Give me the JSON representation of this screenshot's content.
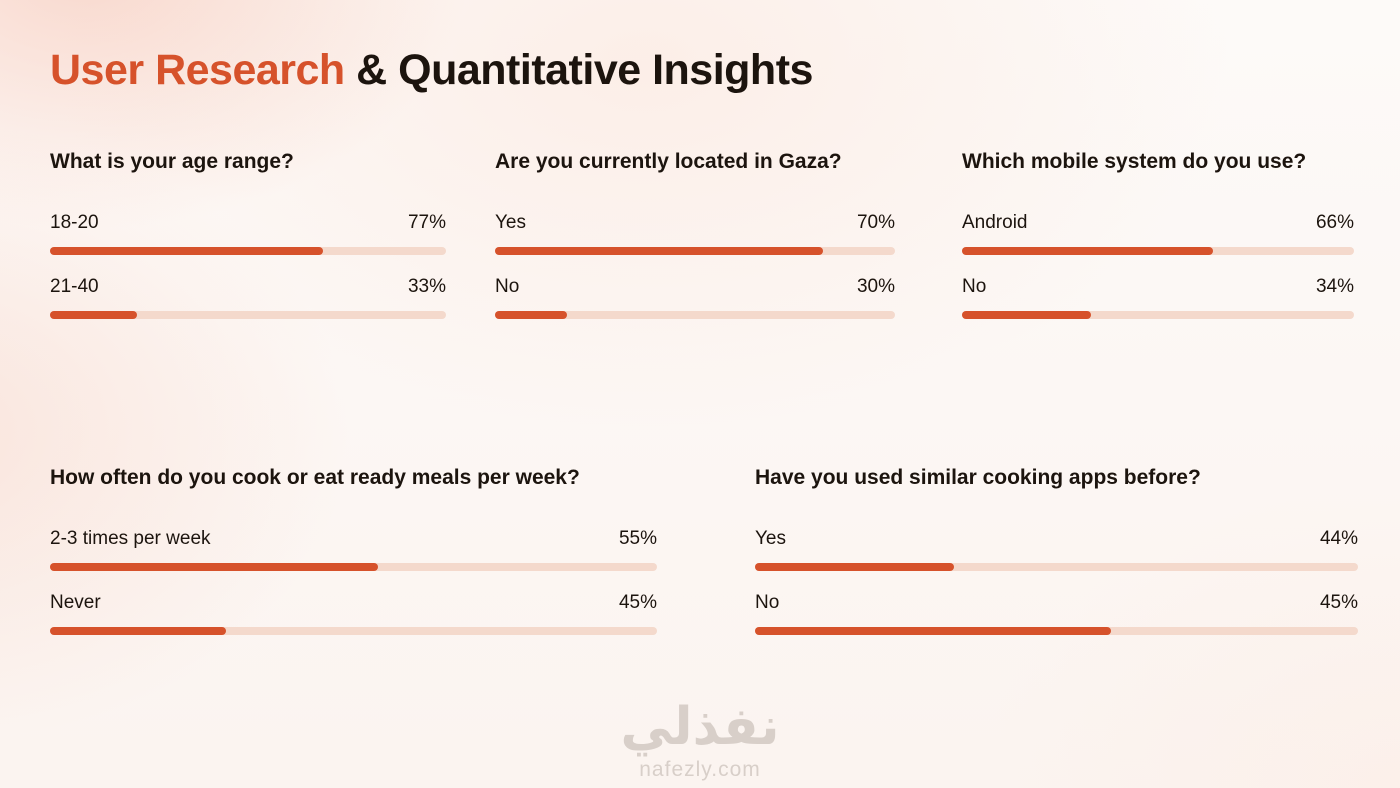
{
  "page": {
    "title": {
      "highlight": "User Research",
      "rest": "& Quantitative Insights"
    }
  },
  "colors": {
    "accent": "#D6522B",
    "bar_track": "#F4D9CC",
    "heading_text": "#1C140E",
    "body_text": "#271D15",
    "watermark": "#D8CFC9"
  },
  "watermark": {
    "logo": "نفذلي",
    "site": "nafezly.com"
  },
  "chart_data": [
    {
      "type": "bar",
      "title": "What is your age range?",
      "categories": [
        "18-20",
        "21-40"
      ],
      "values": [
        77,
        33
      ],
      "unit": "percent",
      "value_labels": [
        "77%",
        "33%"
      ],
      "bar_fills": [
        69,
        22
      ],
      "legend": "none",
      "grid": false
    },
    {
      "type": "bar",
      "title": "Are you currently located in Gaza?",
      "categories": [
        "Yes",
        "No"
      ],
      "values": [
        70,
        30
      ],
      "unit": "percent",
      "value_labels": [
        "70%",
        "30%"
      ],
      "bar_fills": [
        82,
        18
      ],
      "legend": "none",
      "grid": false
    },
    {
      "type": "bar",
      "title": "Which mobile system do you use?",
      "categories": [
        "Android",
        "No"
      ],
      "values": [
        66,
        34
      ],
      "unit": "percent",
      "value_labels": [
        "66%",
        "34%"
      ],
      "bar_fills": [
        64,
        33
      ],
      "legend": "none",
      "grid": false
    },
    {
      "type": "bar",
      "title": "How often do you cook or eat ready meals per week?",
      "categories": [
        "2-3 times per week",
        "Never"
      ],
      "values": [
        55,
        45
      ],
      "unit": "percent",
      "value_labels": [
        "55%",
        "45%"
      ],
      "bar_fills": [
        54,
        29
      ],
      "legend": "none",
      "grid": false
    },
    {
      "type": "bar",
      "title": "Have you used similar cooking apps before?",
      "categories": [
        "Yes",
        "No"
      ],
      "values": [
        44,
        45
      ],
      "unit": "percent",
      "value_labels": [
        "44%",
        "45%"
      ],
      "bar_fills": [
        33,
        59
      ],
      "legend": "none",
      "grid": false
    }
  ]
}
